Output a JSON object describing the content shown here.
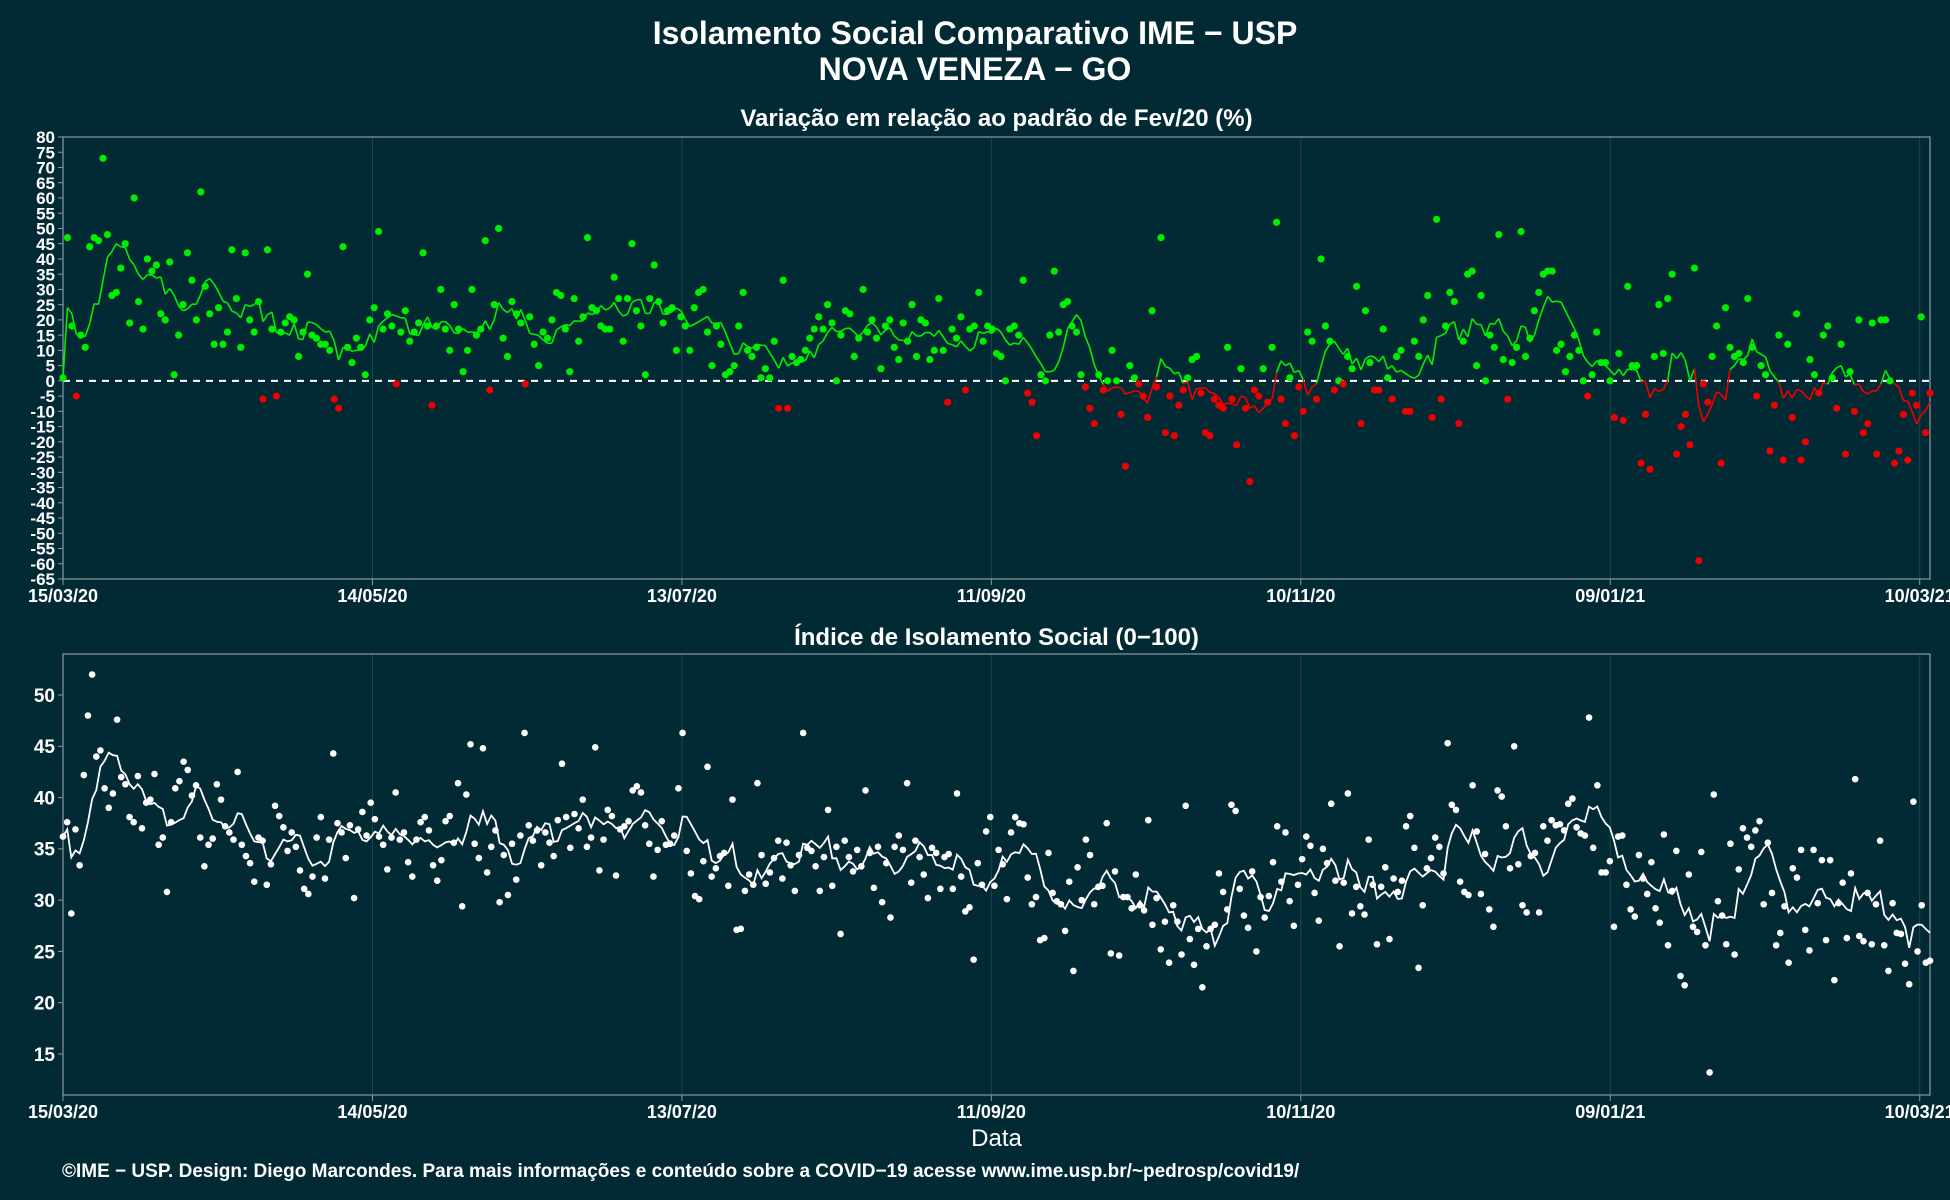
{
  "header": {
    "title": "Isolamento Social Comparativo IME − USP",
    "subtitle": "NOVA VENEZA − GO"
  },
  "footer": {
    "credit": "©IME − USP. Design: Diego Marcondes. Para mais informações e conteúdo sobre a COVID−19 acesse www.ime.usp.br/~pedrosp/covid19/"
  },
  "colors": {
    "background": "#022a35",
    "positive": "#00ee00",
    "negative": "#ee0000",
    "index": "#ffffff",
    "axis": "#8a9aa0",
    "grid": "#1e4650"
  },
  "chart_data": [
    {
      "type": "scatter",
      "title": "Variação em relação ao padrão de Fev/20 (%)",
      "xlabel": "",
      "ylabel": "",
      "x_start": "15/03/20",
      "x_end": "12/03/21",
      "x_ticks": [
        "15/03/20",
        "14/05/20",
        "13/07/20",
        "11/09/20",
        "10/11/20",
        "09/01/21",
        "10/03/21"
      ],
      "y_ticks": [
        80,
        75,
        70,
        65,
        60,
        55,
        50,
        45,
        40,
        35,
        30,
        25,
        20,
        15,
        10,
        5,
        0,
        -5,
        -10,
        -15,
        -20,
        -25,
        -30,
        -35,
        -40,
        -45,
        -50,
        -55,
        -60,
        -65
      ],
      "ylim": [
        -65,
        80
      ],
      "reference_line": 0,
      "smoothing": "7-day moving average line, green above 0 and red below 0",
      "series": [
        {
          "values": [
            1,
            47,
            18,
            -5,
            15,
            11,
            44,
            47,
            46,
            73,
            48,
            28,
            29,
            37,
            45,
            19,
            60,
            26,
            17,
            40,
            36,
            38,
            22,
            20,
            39,
            2,
            15,
            25,
            42,
            33,
            20,
            62,
            31,
            22,
            12,
            24,
            12,
            16,
            43,
            27,
            11,
            42,
            20,
            16,
            26,
            -6,
            43,
            17,
            -5,
            16,
            19,
            21,
            20,
            8,
            16,
            35,
            15,
            14,
            12,
            12,
            10,
            -6,
            -9,
            44,
            11,
            6,
            14,
            11,
            2,
            20,
            24,
            49,
            17,
            22,
            18,
            -1,
            16,
            23,
            13,
            16,
            19,
            42,
            18,
            -8,
            18,
            30,
            17,
            10,
            25,
            17,
            3,
            10,
            30,
            15,
            17,
            46,
            -3,
            25,
            50,
            14,
            8,
            26,
            22,
            19,
            -1,
            21,
            12,
            5,
            16,
            14,
            20,
            29,
            28,
            17,
            3,
            27,
            13,
            21,
            47,
            24,
            23,
            18,
            17,
            17,
            34,
            27,
            13,
            27,
            45,
            23,
            18,
            2,
            27,
            38,
            26,
            19,
            23,
            24,
            10,
            21,
            18,
            10,
            24,
            29,
            30,
            16,
            5,
            18,
            12,
            2,
            3,
            5,
            18,
            29,
            10,
            8,
            11,
            1,
            4,
            1,
            13,
            -9,
            33,
            -9,
            8,
            6,
            7,
            10,
            14,
            17,
            21,
            17,
            25,
            19,
            0,
            15,
            23,
            22,
            8,
            14,
            30,
            16,
            20,
            14,
            4,
            18,
            20,
            11,
            7,
            19,
            13,
            25,
            8,
            20,
            19,
            7,
            10,
            27,
            10,
            -7,
            17,
            14,
            21,
            -3,
            17,
            18,
            29,
            13,
            18,
            17,
            9,
            8,
            0,
            17,
            18,
            15,
            33,
            -4,
            -7,
            -18,
            2,
            0,
            15,
            36,
            16,
            25,
            26,
            18,
            16,
            2,
            -2,
            -9,
            -14,
            2,
            -3,
            0,
            10,
            0,
            -11,
            -28,
            5,
            1,
            -1,
            -5,
            -12,
            23,
            -2,
            47,
            -17,
            -5,
            -18,
            -8,
            -3,
            1,
            7,
            8,
            -4,
            -17,
            -18,
            -6,
            -8,
            -9,
            11,
            -6,
            -21,
            4,
            -9,
            -33,
            -3,
            -5,
            4,
            -7,
            11,
            52,
            -6,
            -14,
            1,
            -18,
            -2,
            -10,
            16,
            13,
            -6,
            40,
            18,
            13,
            -3,
            0,
            -1,
            8,
            4,
            31,
            -14,
            23,
            6,
            -3,
            -3,
            17,
            1,
            -6,
            8,
            10,
            -10,
            -10,
            13,
            8,
            20,
            28,
            -12,
            53,
            -6,
            18,
            29,
            26,
            -14,
            13,
            35,
            36,
            5,
            28,
            0,
            15,
            11,
            48,
            7,
            -6,
            6,
            11,
            49,
            8,
            14,
            23,
            29,
            35,
            36,
            36,
            10,
            12,
            3,
            8,
            15,
            10,
            0,
            -5,
            2,
            16,
            6,
            6,
            0,
            -12,
            9,
            -13,
            31,
            5,
            5,
            -27,
            -11,
            -29,
            8,
            25,
            9,
            27,
            35,
            -24,
            -15,
            -11,
            -21,
            37,
            -59,
            -1,
            -7,
            8,
            18,
            -27,
            24,
            11,
            8,
            9,
            6,
            27,
            11,
            -5,
            5,
            2,
            -23,
            -8,
            15,
            -26,
            12,
            -12,
            22,
            -26,
            -20,
            7,
            2,
            -4,
            15,
            18,
            1,
            -9,
            12,
            -24,
            3,
            -10,
            20,
            -17,
            -14,
            19,
            -24,
            20,
            20,
            0,
            -27,
            -23,
            -11,
            -26,
            -4,
            -8,
            21,
            -17,
            -4
          ]
        }
      ]
    },
    {
      "type": "scatter",
      "title": "Índice de Isolamento Social (0−100)",
      "xlabel": "Data",
      "ylabel": "",
      "x_start": "15/03/20",
      "x_end": "12/03/21",
      "x_ticks": [
        "15/03/20",
        "14/05/20",
        "13/07/20",
        "11/09/20",
        "10/11/20",
        "09/01/21",
        "10/03/21"
      ],
      "y_ticks": [
        50,
        45,
        40,
        35,
        30,
        25,
        20,
        15
      ],
      "ylim": [
        11,
        54
      ],
      "smoothing": "7-day moving average line",
      "series": [
        {
          "values": [
            36.2,
            37.6,
            28.7,
            36.9,
            33.4,
            42.2,
            48,
            52,
            44,
            44.6,
            40.9,
            39,
            40.4,
            47.6,
            42,
            41.3,
            38.1,
            37.6,
            42.1,
            37,
            39.5,
            39.8,
            42.3,
            35.4,
            36.1,
            30.8,
            37.6,
            40.9,
            41.6,
            43.5,
            42.7,
            40.2,
            41.2,
            36.1,
            33.3,
            35.4,
            36,
            41.3,
            39.8,
            37.2,
            36.6,
            35.9,
            42.5,
            35.4,
            34.3,
            33.6,
            31.8,
            36.1,
            35.8,
            31.5,
            33.5,
            39.2,
            38.2,
            37.1,
            34.8,
            36.6,
            35.2,
            32.9,
            31.1,
            30.6,
            32.3,
            36.1,
            38.1,
            32.1,
            35.9,
            44.3,
            37.5,
            36.6,
            34.1,
            37.3,
            30.2,
            36.9,
            38.6,
            36.3,
            39.5,
            37.9,
            36.2,
            35.4,
            33,
            36.1,
            40.5,
            35.9,
            36.6,
            33.7,
            32.3,
            35.9,
            37.6,
            38.1,
            36.8,
            33.4,
            31.9,
            33.9,
            37.7,
            38.2,
            35.6,
            41.4,
            29.4,
            40.3,
            45.2,
            35.5,
            34.1,
            44.8,
            32.7,
            35.2,
            36.8,
            29.8,
            34.4,
            30.5,
            35.5,
            32,
            36.3,
            46.3,
            37.3,
            35.8,
            36.8,
            33.4,
            36.6,
            35.6,
            34.3,
            37.8,
            43.3,
            38.1,
            35.1,
            38.4,
            37,
            39.8,
            35.2,
            36.1,
            44.9,
            32.9,
            35.9,
            38.8,
            38.2,
            32.4,
            36.9,
            37.2,
            37.7,
            40.7,
            41.1,
            40.5,
            37.3,
            35.5,
            32.3,
            34.9,
            37.7,
            35.4,
            35.5,
            36.3,
            40.9,
            46.3,
            34.8,
            32.6,
            30.4,
            30.1,
            33.8,
            43,
            32.3,
            33.1,
            34.3,
            34.6,
            31.4,
            39.8,
            27.1,
            27.2,
            30.9,
            32.5,
            31.5,
            41.4,
            34.4,
            31.6,
            32.7,
            34.1,
            35.8,
            32.1,
            35.6,
            33.4,
            30.9,
            34.4,
            46.3,
            35.1,
            34.8,
            33.3,
            30.9,
            34.2,
            38.8,
            31.4,
            35.2,
            26.7,
            35.8,
            34.2,
            32.8,
            34.9,
            33.3,
            40.7,
            34.6,
            31.2,
            35.2,
            29.8,
            33.6,
            28.3,
            35.2,
            36.3,
            34.9,
            41.4,
            31.7,
            35.8,
            34.2,
            32.5,
            30.2,
            35.1,
            34.6,
            31.1,
            34.2,
            34.5,
            31.1,
            40.4,
            32.3,
            28.9,
            29.3,
            24.2,
            33.6,
            31.5,
            36.7,
            38.1,
            31.4,
            34.9,
            33.5,
            30.1,
            36.6,
            38.1,
            37.5,
            37.4,
            32.2,
            29.6,
            30.3,
            26.1,
            26.3,
            34.6,
            30.7,
            29.9,
            29.6,
            27,
            31.8,
            23.1,
            33.2,
            30,
            35.9,
            34.4,
            29.6,
            31.3,
            31.4,
            37.5,
            24.8,
            32.8,
            24.6,
            30.3,
            30.3,
            29.2,
            32.5,
            29.5,
            29,
            37.8,
            27.6,
            30.2,
            25.2,
            27.9,
            23.9,
            29.5,
            27.9,
            24.7,
            39.2,
            26.2,
            23.7,
            27.2,
            21.5,
            25.5,
            27.2,
            27.6,
            32.6,
            30.8,
            29.1,
            39.3,
            38.7,
            31.1,
            28.5,
            27.3,
            32.8,
            25,
            30.3,
            28.3,
            30.4,
            33.7,
            37.2,
            31.8,
            36.6,
            29.9,
            27.5,
            31.5,
            34,
            36.2,
            35.3,
            30.7,
            28,
            35,
            33.6,
            39.4,
            31.9,
            25.5,
            31.7,
            40.4,
            28.7,
            31.3,
            29.4,
            28.6,
            35.9,
            31.5,
            25.7,
            31.3,
            33.2,
            26.2,
            32.1,
            30.8,
            31.9,
            37.2,
            38.2,
            35.1,
            23.4,
            29.5,
            33.1,
            34.1,
            36.1,
            35.2,
            32.6,
            45.3,
            39.3,
            38.8,
            31.8,
            30.8,
            30.5,
            41.2,
            36.7,
            30.6,
            34.5,
            29.1,
            27.4,
            40.7,
            40.1,
            37.2,
            33.1,
            45,
            33.5,
            29.5,
            28.8,
            34.3,
            34.6,
            28.8,
            37.2,
            35.8,
            37.8,
            37.3,
            37.4,
            36.8,
            39.4,
            39.9,
            37.1,
            36.5,
            36.3,
            47.8,
            35.1,
            41.2,
            32.7,
            32.7,
            33.8,
            27.4,
            36.2,
            36.3,
            31.5,
            29.1,
            28.4,
            34.4,
            32.1,
            30.6,
            33.7,
            29.2,
            27.8,
            36.4,
            25.6,
            30.9,
            34.8,
            22.6,
            21.7,
            32.5,
            27.4,
            26.9,
            34.7,
            25.6,
            13.2,
            40.3,
            29.9,
            28.5,
            25.7,
            35.5,
            24.7,
            33,
            37,
            36.1,
            35.2,
            36.8,
            37.7,
            29.6,
            35.6,
            30.7,
            25.6,
            26.8,
            29.4,
            23.9,
            33.1,
            32.2,
            34.9,
            27.1,
            25.1,
            34.9,
            29.7,
            33.9,
            26.1,
            33.9,
            22.2,
            29.7,
            31.7,
            26.3,
            32.6,
            41.8,
            26.5,
            26,
            30.7,
            25.7,
            29.6,
            35.8,
            25.6,
            23.1,
            29.7,
            26.8,
            26.7,
            23.8,
            21.8,
            39.6,
            25,
            29.5,
            23.9,
            24.1
          ]
        }
      ]
    }
  ]
}
